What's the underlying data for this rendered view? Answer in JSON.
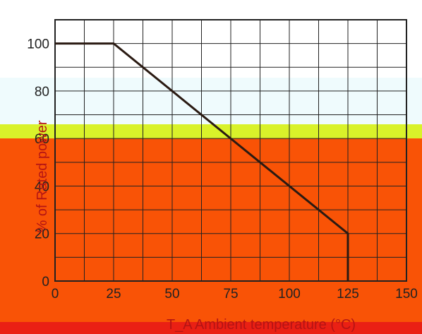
{
  "colors": {
    "bands": [
      "#ffffff",
      "#effbfd",
      "#d9f22a",
      "#f95306",
      "#ea2014"
    ],
    "curve": "#2a1a12",
    "grid": "#222222",
    "axis_title": "#b41414"
  },
  "chart_data": {
    "type": "line",
    "title": "",
    "xlabel": "T_A Ambient temperature (°C)",
    "ylabel": "% of Rated power",
    "xlim": [
      0,
      150
    ],
    "ylim": [
      0,
      110
    ],
    "x_ticks": [
      "0",
      "25",
      "50",
      "75",
      "100",
      "125",
      "150"
    ],
    "y_ticks": [
      "0",
      "20",
      "40",
      "60",
      "80",
      "100"
    ],
    "grid": true,
    "series": [
      {
        "x": [
          0,
          25,
          125,
          125
        ],
        "y": [
          100,
          100,
          20,
          0
        ]
      }
    ]
  }
}
